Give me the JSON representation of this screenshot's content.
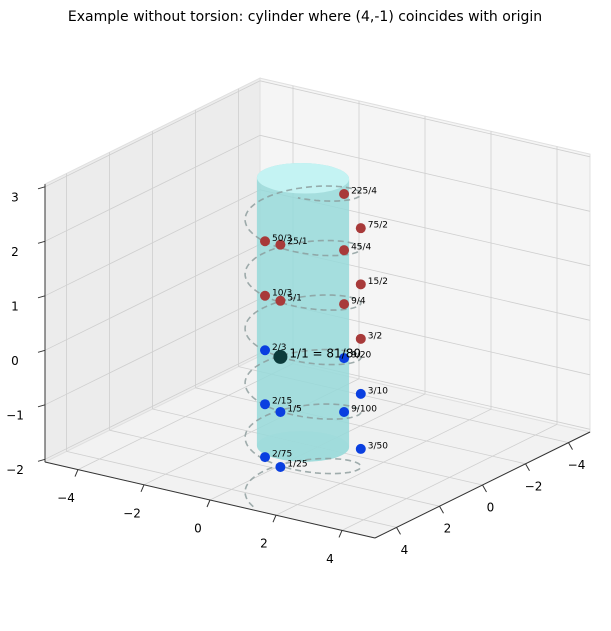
{
  "chart_data": {
    "type": "scatter3d",
    "title": "Example without torsion: cylinder where (4,-1) coincides with origin",
    "xlim": [
      -5,
      5
    ],
    "ylim": [
      -5,
      5
    ],
    "zlim": [
      -2.05,
      3.05
    ],
    "xticks": [
      {
        "value": -4,
        "label": "−4"
      },
      {
        "value": -2,
        "label": "−2"
      },
      0,
      2,
      4
    ],
    "yticks": [
      {
        "value": -4,
        "label": "−4"
      },
      {
        "value": -2,
        "label": "−2"
      },
      0,
      2,
      4
    ],
    "zticks": [
      {
        "value": -2,
        "label": "−2"
      },
      {
        "value": -1,
        "label": "−1"
      },
      0,
      1,
      2,
      3
    ],
    "grid": true,
    "cylinder": {
      "center": [
        -0.12,
        0.49
      ],
      "radius": 1.17,
      "zlim": [
        -1.96,
        2.96
      ],
      "color": "#97d9d9",
      "top_color": "#c8f5f5",
      "bottom_color": "#cde2e2"
    },
    "helix": {
      "center": [
        -0.12,
        0.49
      ],
      "radius": 1.47,
      "zlim": [
        -2.9,
        2.95
      ],
      "turns_per_unit": 1,
      "phase_deg": 80,
      "color": "#8a9a9a"
    },
    "points": [
      {
        "label": "1/25",
        "x": 0.14,
        "y": 1.94,
        "z": -2.02,
        "color": "#0a3fe0",
        "size": 5
      },
      {
        "label": "2/75",
        "x": -0.32,
        "y": 1.95,
        "z": -1.9,
        "color": "#0a3fe0",
        "size": 5
      },
      {
        "label": "3/50",
        "x": 1.11,
        "y": -0.31,
        "z": -1.99,
        "color": "#0a3fe0",
        "size": 5
      },
      {
        "label": "1/5",
        "x": 0.14,
        "y": 1.94,
        "z": -1.01,
        "color": "#0a3fe0",
        "size": 5
      },
      {
        "label": "2/15",
        "x": -0.32,
        "y": 1.95,
        "z": -0.93,
        "color": "#0a3fe0",
        "size": 5
      },
      {
        "label": "9/100",
        "x": 1.32,
        "y": 0.79,
        "z": -1.07,
        "color": "#0a3fe0",
        "size": 5
      },
      {
        "label": "3/10",
        "x": 1.11,
        "y": -0.31,
        "z": -0.98,
        "color": "#0a3fe0",
        "size": 5
      },
      {
        "label": "2/3",
        "x": -0.32,
        "y": 1.95,
        "z": 0.06,
        "color": "#0a3fe0",
        "size": 5
      },
      {
        "label": "9/20",
        "x": 1.32,
        "y": 0.79,
        "z": -0.08,
        "color": "#0a3fe0",
        "size": 5
      },
      {
        "label": "1/1 = 81/80",
        "x": 0.14,
        "y": 1.94,
        "z": 0,
        "color": "#0c3c3c",
        "size": 7
      },
      {
        "label": "3/2",
        "x": 1.11,
        "y": -0.31,
        "z": 0.03,
        "color": "#a83a3a",
        "size": 5
      },
      {
        "label": "10/3",
        "x": -0.32,
        "y": 1.95,
        "z": 1.06,
        "color": "#a83a3a",
        "size": 5
      },
      {
        "label": "5/1",
        "x": 0.14,
        "y": 1.94,
        "z": 1.03,
        "color": "#a83a3a",
        "size": 5
      },
      {
        "label": "9/4",
        "x": 1.32,
        "y": 0.79,
        "z": 0.91,
        "color": "#a83a3a",
        "size": 5
      },
      {
        "label": "15/2",
        "x": 1.11,
        "y": -0.31,
        "z": 1.03,
        "color": "#a83a3a",
        "size": 5
      },
      {
        "label": "50/3",
        "x": -0.32,
        "y": 1.95,
        "z": 2.06,
        "color": "#a83a3a",
        "size": 5
      },
      {
        "label": "25/1",
        "x": 0.14,
        "y": 1.94,
        "z": 2.06,
        "color": "#a83a3a",
        "size": 5
      },
      {
        "label": "45/4",
        "x": 1.32,
        "y": 0.79,
        "z": 1.9,
        "color": "#a83a3a",
        "size": 5
      },
      {
        "label": "75/2",
        "x": 1.11,
        "y": -0.31,
        "z": 2.06,
        "color": "#a83a3a",
        "size": 5
      },
      {
        "label": "225/4",
        "x": 1.32,
        "y": 0.79,
        "z": 2.93,
        "color": "#a83a3a",
        "size": 5
      }
    ]
  }
}
